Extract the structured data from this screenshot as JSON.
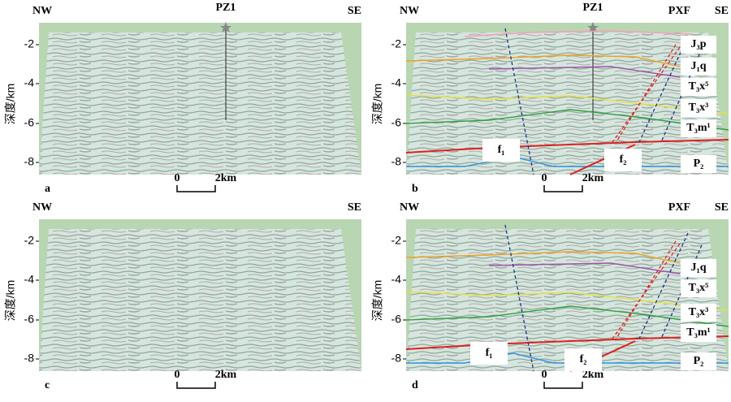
{
  "panels": [
    {
      "letter": "a",
      "left": "NW",
      "right": "SE",
      "well": "PZ1",
      "y_label": "深度/km",
      "y_ticks": [
        "-2",
        "-4",
        "-6",
        "-8"
      ],
      "scale": [
        "0",
        "2km"
      ]
    },
    {
      "letter": "b",
      "left": "NW",
      "right": "SE",
      "well": "PZ1",
      "fault_zone": "PXF",
      "y_label": "深度/km",
      "y_ticks": [
        "-2",
        "-4",
        "-6",
        "-8"
      ],
      "scale": [
        "0",
        "2km"
      ],
      "horizons": [
        "J₃p",
        "J₁q",
        "T₃x⁵",
        "T₃x³",
        "T₃m¹",
        "P₂"
      ],
      "faults": [
        "f₁",
        "f₂"
      ]
    },
    {
      "letter": "c",
      "left": "NW",
      "right": "SE",
      "y_label": "深度/km",
      "y_ticks": [
        "-2",
        "-4",
        "-6",
        "-8"
      ],
      "scale": [
        "0",
        "2km"
      ]
    },
    {
      "letter": "d",
      "left": "NW",
      "right": "SE",
      "fault_zone": "PXF",
      "y_label": "深度/km",
      "y_ticks": [
        "-2",
        "-4",
        "-6",
        "-8"
      ],
      "scale": [
        "0",
        "2km"
      ],
      "horizons": [
        "J₁q",
        "T₃x⁵",
        "T₃x³",
        "T₃m¹",
        "P₂"
      ],
      "faults": [
        "f₁",
        "f₂"
      ]
    }
  ]
}
